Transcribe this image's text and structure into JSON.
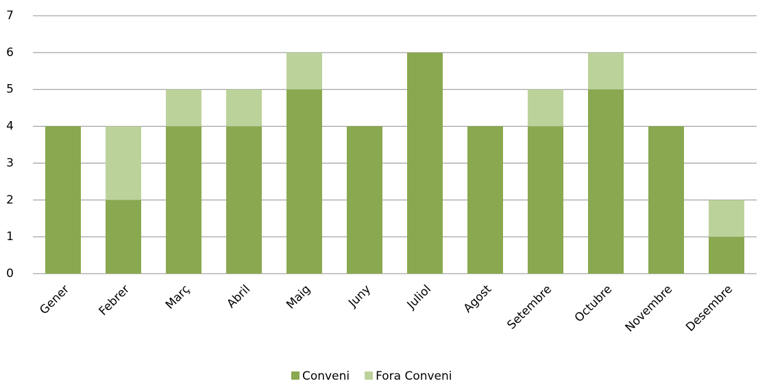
{
  "chart_data": {
    "type": "stacked_bar",
    "categories": [
      "Gener",
      "Febrer",
      "Març",
      "Abril",
      "Maig",
      "Juny",
      "Juliol",
      "Agost",
      "Setembre",
      "Octubre",
      "Novembre",
      "Desembre"
    ],
    "series": [
      {
        "name": "Conveni",
        "color": "#8aa84f",
        "values": [
          4,
          2,
          4,
          4,
          5,
          4,
          6,
          4,
          4,
          5,
          4,
          1
        ]
      },
      {
        "name": "Fora Conveni",
        "color": "#bcd29b",
        "values": [
          0,
          2,
          1,
          1,
          1,
          0,
          0,
          0,
          1,
          1,
          0,
          1
        ]
      }
    ],
    "ylim": [
      0,
      7
    ],
    "yticks": [
      0,
      1,
      2,
      3,
      4,
      5,
      6,
      7
    ],
    "grid": true,
    "legend": "bottom"
  }
}
